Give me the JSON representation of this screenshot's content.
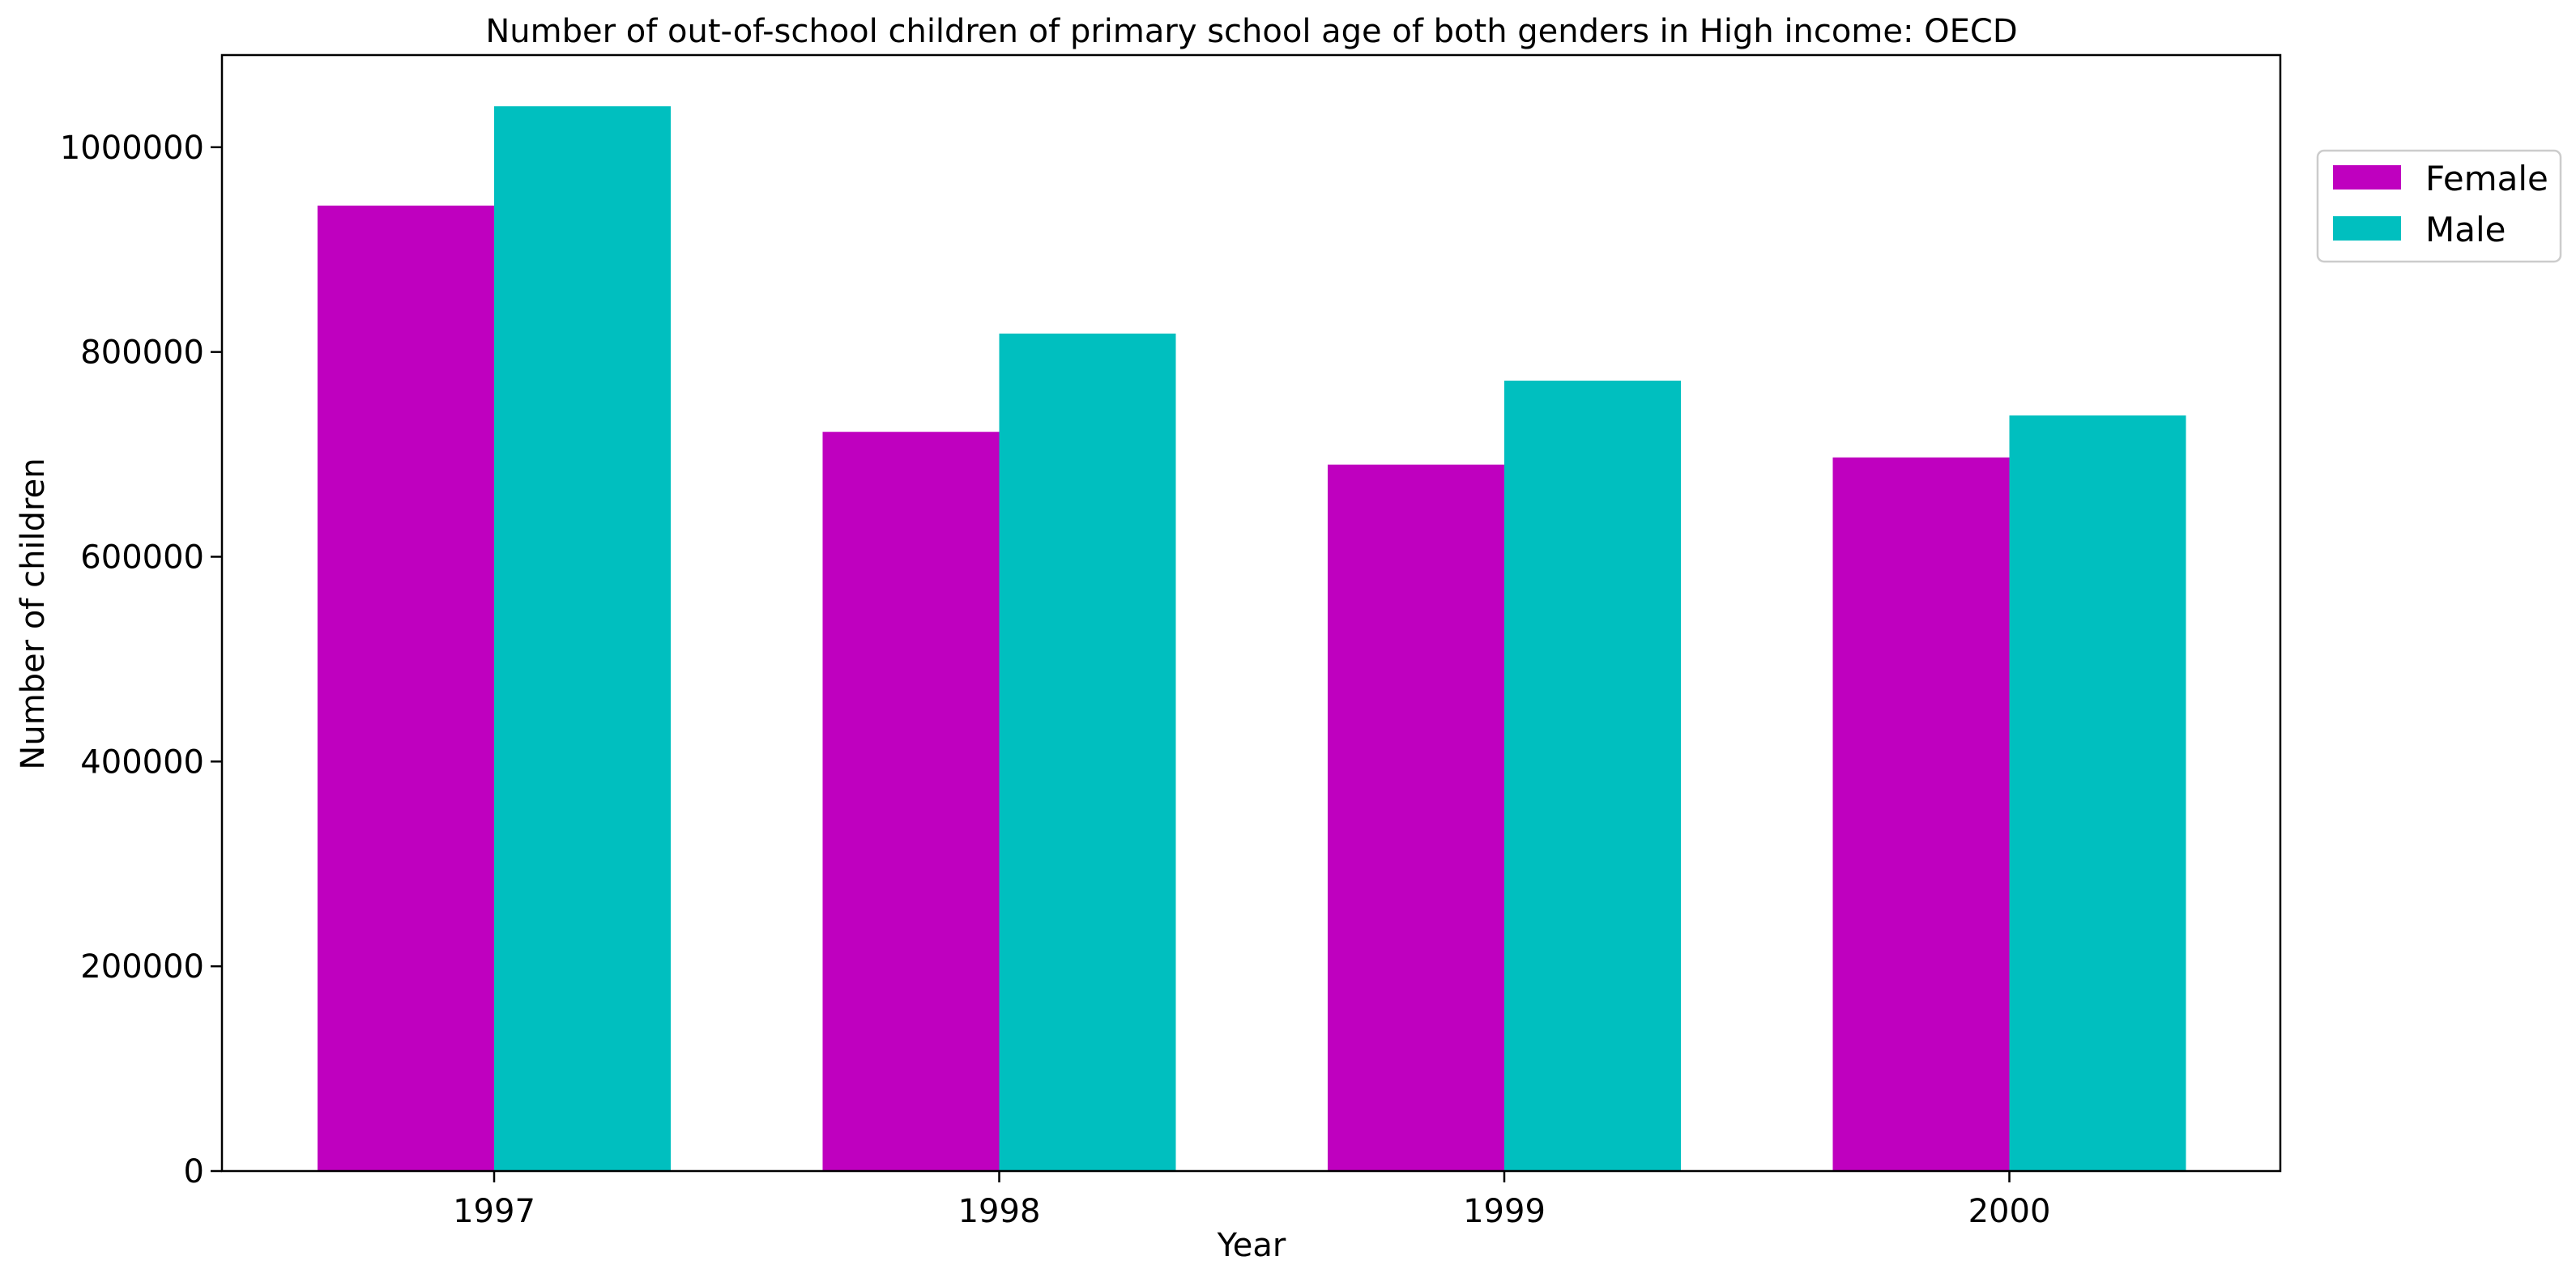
{
  "chart_data": {
    "type": "bar",
    "title": "Number of out-of-school children of primary school age of both genders in High income: OECD",
    "xlabel": "Year",
    "ylabel": "Number of children",
    "categories": [
      "1997",
      "1998",
      "1999",
      "2000"
    ],
    "series": [
      {
        "name": "Female",
        "color": "#bf00bf",
        "values": [
          943000,
          722000,
          690000,
          697000
        ]
      },
      {
        "name": "Male",
        "color": "#00bfbf",
        "values": [
          1040000,
          818000,
          772000,
          738000
        ]
      }
    ],
    "ylim": [
      0,
      1090000
    ],
    "yticks": [
      0,
      200000,
      400000,
      600000,
      800000,
      1000000
    ],
    "ytick_labels": [
      "0",
      "200000",
      "400000",
      "600000",
      "800000",
      "1000000"
    ],
    "grid": false,
    "legend_position": "upper-right-outside"
  }
}
